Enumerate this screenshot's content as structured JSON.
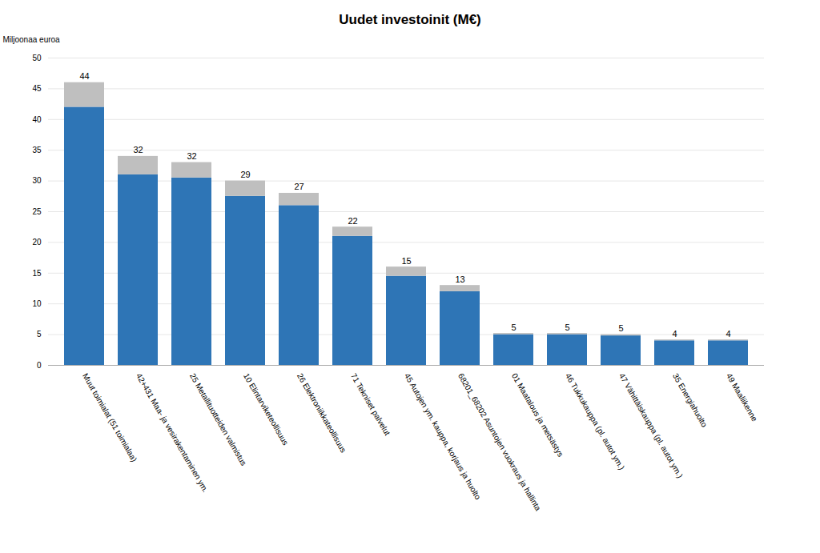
{
  "chart_data": {
    "type": "bar",
    "stacked": true,
    "title": "Uudet investoinit (M€)",
    "ylabel": "Miljoonaa euroa",
    "categories": [
      "Muut toimialat (51 toimialaa)",
      "42+431 Maa- ja vesirakentaminen ym.",
      "25 Metallituotteiden valmistus",
      "10 Elintarviketeollisuus",
      "26 Elektroniikkateollisuus",
      "71 Tekniset palvelut",
      "45 Autojen ym. kauppa, korjaus ja huolto",
      "68201_68202 Asuntojen vuokraus ja hallinta",
      "01 Maatalous ja metsästys",
      "46 Tukkukauppa (pl. autot ym.)",
      "47 Vähittäiskauppa (pl. autot ym.)",
      "35 Energiahuolto",
      "49 Maaliikenne"
    ],
    "series": [
      {
        "color": "#2e75b6",
        "values": [
          42.0,
          31.0,
          30.5,
          27.5,
          26.0,
          21.0,
          14.5,
          12.0,
          5.0,
          5.0,
          4.8,
          4.0,
          4.0
        ]
      },
      {
        "color": "#bfbfbf",
        "values": [
          4.0,
          3.0,
          2.5,
          2.5,
          2.0,
          1.5,
          1.5,
          1.0,
          0.2,
          0.2,
          0.2,
          0.15,
          0.15
        ]
      }
    ],
    "data_labels": true,
    "value_labels": [
      "44",
      "32",
      "32",
      "29",
      "27",
      "22",
      "15",
      "13",
      "5",
      "5",
      "5",
      "4",
      "4"
    ],
    "ylim": [
      0,
      50
    ],
    "yticks": [
      0,
      5,
      10,
      15,
      20,
      25,
      30,
      35,
      40,
      45,
      50
    ],
    "grid": true
  }
}
